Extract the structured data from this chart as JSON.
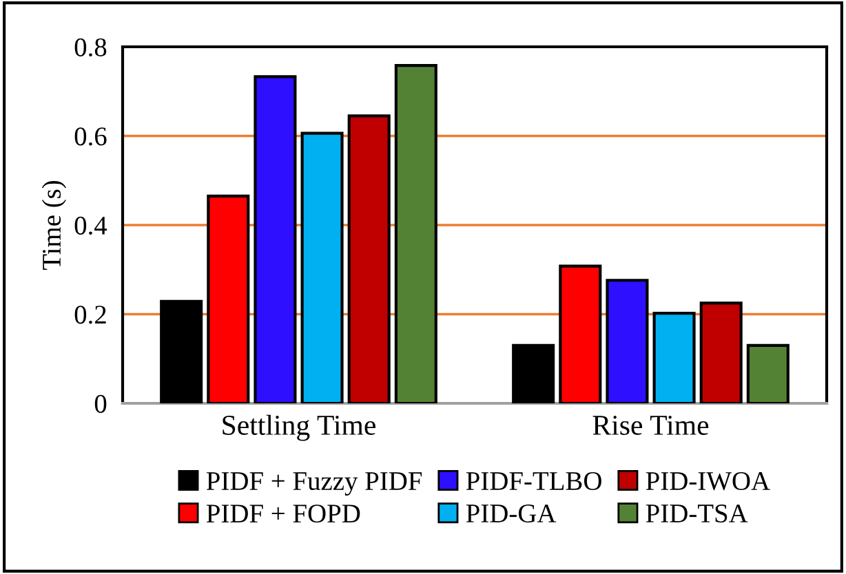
{
  "chart_data": {
    "type": "bar",
    "ylabel": "Time (s)",
    "categories": [
      "Settling Time",
      "Rise Time"
    ],
    "series": [
      {
        "name": "PIDF + Fuzzy PIDF",
        "color": "#000000",
        "values": [
          0.229,
          0.13
        ]
      },
      {
        "name": "PIDF + FOPD",
        "color": "#ff0000",
        "values": [
          0.465,
          0.308
        ]
      },
      {
        "name": "PIDF-TLBO",
        "color": "#2e0fff",
        "values": [
          0.733,
          0.276
        ]
      },
      {
        "name": "PID-GA",
        "color": "#00b0f0",
        "values": [
          0.606,
          0.202
        ]
      },
      {
        "name": "PID-IWOA",
        "color": "#c00000",
        "values": [
          0.645,
          0.225
        ]
      },
      {
        "name": "PID-TSA",
        "color": "#548235",
        "values": [
          0.758,
          0.13
        ]
      }
    ],
    "ylim": [
      0,
      0.8
    ],
    "yticks": [
      0,
      0.2,
      0.4,
      0.6,
      0.8
    ],
    "grid": "y",
    "legend": "bottom"
  }
}
